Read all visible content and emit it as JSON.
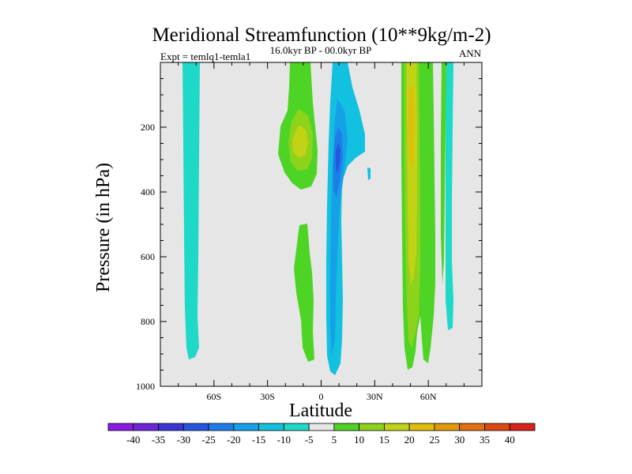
{
  "chart_data": {
    "type": "heatmap",
    "title": "Meridional Streamfunction (10**9kg/m-2)",
    "left_subtitle": "Expt = temlq1-temla1",
    "center_subtitle": "16.0kyr BP - 00.0kyr BP",
    "right_subtitle": "ANN",
    "xlabel": "Latitude",
    "ylabel": "Pressure (in hPa)",
    "xlim": [
      -90,
      90
    ],
    "ylim": [
      1000,
      0
    ],
    "x_ticks": [
      {
        "value": -60,
        "label": "60S"
      },
      {
        "value": -30,
        "label": "30S"
      },
      {
        "value": 0,
        "label": "0"
      },
      {
        "value": 30,
        "label": "30N"
      },
      {
        "value": 60,
        "label": "60N"
      }
    ],
    "y_ticks": [
      {
        "value": 200,
        "label": "200"
      },
      {
        "value": 400,
        "label": "400"
      },
      {
        "value": 600,
        "label": "600"
      },
      {
        "value": 800,
        "label": "800"
      },
      {
        "value": 1000,
        "label": "1000"
      }
    ],
    "background_color": "#e6e6e6",
    "colorbar": {
      "labels": [
        "-40",
        "-35",
        "-30",
        "-25",
        "-20",
        "-15",
        "-10",
        "-5",
        "5",
        "10",
        "15",
        "20",
        "25",
        "30",
        "35",
        "40"
      ],
      "colors": [
        "#8a1be2",
        "#6f26d9",
        "#3a36d6",
        "#2556e0",
        "#1d7ee8",
        "#15a0e8",
        "#12c0e0",
        "#1ed8c8",
        "#e6e6e6",
        "#4ed425",
        "#8dd31c",
        "#c2d214",
        "#e0be0c",
        "#e2990a",
        "#e07010",
        "#dc4a14",
        "#d8231a"
      ]
    },
    "features": [
      {
        "name": "cell-60s",
        "lat_min": -76,
        "lat_max": -68,
        "p_top": 0,
        "p_bottom": 910,
        "value": -7
      },
      {
        "name": "cell-30s-upper",
        "lat_min": -18,
        "lat_max": -3,
        "p_top": 0,
        "p_bottom": 230,
        "value": 6
      },
      {
        "name": "cell-30s-core",
        "lat_min": -14,
        "lat_max": -7,
        "p_top": 190,
        "p_bottom": 280,
        "value": 12
      },
      {
        "name": "cell-30s-lower",
        "lat_min": -12,
        "lat_max": -4,
        "p_top": 390,
        "p_bottom": 950,
        "value": 6
      },
      {
        "name": "cell-equator",
        "lat_min": 4,
        "lat_max": 14,
        "p_top": 0,
        "p_bottom": 960,
        "value": -12
      },
      {
        "name": "cell-equator-core",
        "lat_min": 6,
        "lat_max": 12,
        "p_top": 150,
        "p_bottom": 700,
        "value": -22
      },
      {
        "name": "cell-50n",
        "lat_min": 40,
        "lat_max": 56,
        "p_top": 0,
        "p_bottom": 950,
        "value": 6
      },
      {
        "name": "cell-50n-core",
        "lat_min": 45,
        "lat_max": 52,
        "p_top": 0,
        "p_bottom": 860,
        "value": 16
      },
      {
        "name": "cell-70n",
        "lat_min": 69,
        "lat_max": 73,
        "p_top": 0,
        "p_bottom": 820,
        "value": -7
      }
    ]
  }
}
